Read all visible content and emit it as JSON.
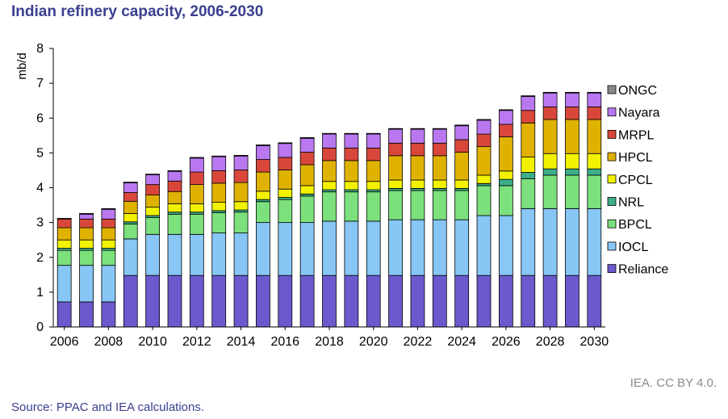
{
  "title": "Indian refinery capacity, 2006-2030",
  "credit": "IEA. CC BY 4.0.",
  "source": "Source: PPAC and IEA calculations.",
  "chart_data": {
    "type": "bar",
    "stacked": true,
    "title": "Indian refinery capacity, 2006-2030",
    "ylabel": "mb/d",
    "xlabel": "",
    "ylim": [
      0,
      8
    ],
    "yticks": [
      "0",
      "1",
      "2",
      "3",
      "4",
      "5",
      "6",
      "7",
      "8"
    ],
    "grid": false,
    "legend_position": "right",
    "categories": [
      "2006",
      "2007",
      "2008",
      "2009",
      "2010",
      "2011",
      "2012",
      "2013",
      "2014",
      "2015",
      "2016",
      "2017",
      "2018",
      "2019",
      "2020",
      "2021",
      "2022",
      "2023",
      "2024",
      "2025",
      "2026",
      "2027",
      "2028",
      "2029",
      "2030"
    ],
    "xtick_labels": [
      "2006",
      "",
      "2008",
      "",
      "2010",
      "",
      "2012",
      "",
      "2014",
      "",
      "2016",
      "",
      "2018",
      "",
      "2020",
      "",
      "2022",
      "",
      "2024",
      "",
      "2026",
      "",
      "2028",
      "",
      "2030"
    ],
    "series": [
      {
        "name": "Reliance",
        "color": "#6a5acd",
        "values": [
          0.72,
          0.72,
          0.72,
          1.48,
          1.48,
          1.48,
          1.48,
          1.48,
          1.48,
          1.48,
          1.48,
          1.48,
          1.48,
          1.48,
          1.48,
          1.48,
          1.48,
          1.48,
          1.48,
          1.48,
          1.48,
          1.48,
          1.48,
          1.48,
          1.48
        ]
      },
      {
        "name": "IOCL",
        "color": "#87c6f5",
        "values": [
          1.05,
          1.05,
          1.05,
          1.05,
          1.18,
          1.18,
          1.18,
          1.22,
          1.22,
          1.52,
          1.52,
          1.52,
          1.56,
          1.56,
          1.56,
          1.6,
          1.6,
          1.6,
          1.6,
          1.72,
          1.72,
          1.92,
          1.92,
          1.92,
          1.92
        ]
      },
      {
        "name": "BPCL",
        "color": "#7ce07c",
        "values": [
          0.43,
          0.43,
          0.43,
          0.43,
          0.48,
          0.58,
          0.58,
          0.58,
          0.6,
          0.6,
          0.66,
          0.76,
          0.84,
          0.84,
          0.84,
          0.84,
          0.84,
          0.84,
          0.84,
          0.86,
          0.86,
          0.86,
          0.96,
          0.96,
          0.96
        ]
      },
      {
        "name": "NRL",
        "color": "#3cae8a",
        "values": [
          0.06,
          0.06,
          0.06,
          0.06,
          0.06,
          0.06,
          0.06,
          0.06,
          0.06,
          0.06,
          0.06,
          0.06,
          0.06,
          0.06,
          0.06,
          0.06,
          0.06,
          0.06,
          0.06,
          0.06,
          0.18,
          0.18,
          0.18,
          0.18,
          0.18
        ]
      },
      {
        "name": "CPCL",
        "color": "#f2f200",
        "values": [
          0.24,
          0.24,
          0.24,
          0.24,
          0.24,
          0.24,
          0.24,
          0.24,
          0.24,
          0.24,
          0.24,
          0.24,
          0.24,
          0.24,
          0.24,
          0.24,
          0.24,
          0.24,
          0.24,
          0.24,
          0.24,
          0.44,
          0.44,
          0.44,
          0.44
        ]
      },
      {
        "name": "HPCL",
        "color": "#e0b200",
        "values": [
          0.35,
          0.35,
          0.35,
          0.35,
          0.35,
          0.35,
          0.55,
          0.55,
          0.55,
          0.55,
          0.55,
          0.6,
          0.6,
          0.6,
          0.6,
          0.7,
          0.7,
          0.7,
          0.8,
          0.82,
          0.98,
          0.98,
          0.98,
          0.98,
          0.98
        ]
      },
      {
        "name": "MRPL",
        "color": "#d9473b",
        "values": [
          0.25,
          0.25,
          0.25,
          0.25,
          0.3,
          0.3,
          0.36,
          0.36,
          0.36,
          0.36,
          0.36,
          0.36,
          0.36,
          0.36,
          0.36,
          0.36,
          0.36,
          0.36,
          0.36,
          0.36,
          0.36,
          0.36,
          0.36,
          0.36,
          0.36
        ]
      },
      {
        "name": "Nayara",
        "color": "#b978f0",
        "values": [
          0,
          0.14,
          0.28,
          0.28,
          0.28,
          0.28,
          0.4,
          0.4,
          0.4,
          0.4,
          0.4,
          0.4,
          0.4,
          0.4,
          0.4,
          0.4,
          0.4,
          0.4,
          0.4,
          0.4,
          0.4,
          0.4,
          0.4,
          0.4,
          0.4
        ]
      },
      {
        "name": "ONGC",
        "color": "#8a8a8a",
        "values": [
          0.02,
          0.02,
          0.02,
          0.02,
          0.02,
          0.02,
          0.02,
          0.02,
          0.02,
          0.02,
          0.02,
          0.02,
          0.02,
          0.02,
          0.02,
          0.02,
          0.02,
          0.02,
          0.02,
          0.02,
          0.02,
          0.02,
          0.02,
          0.02,
          0.02
        ]
      }
    ]
  }
}
